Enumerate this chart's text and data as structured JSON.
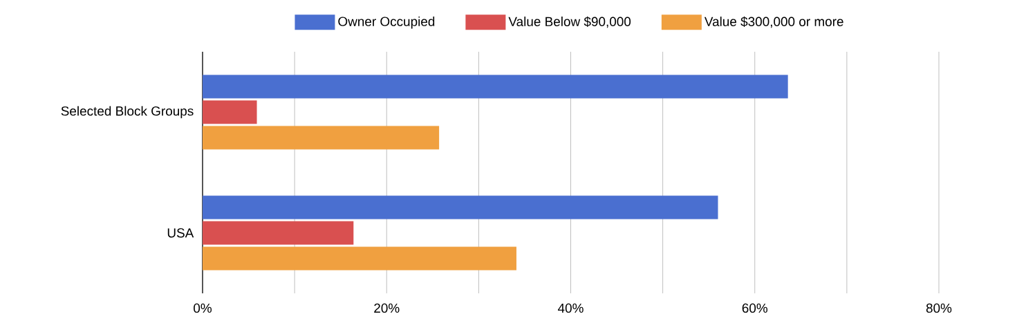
{
  "chart_data": {
    "type": "bar",
    "orientation": "horizontal",
    "categories": [
      "Selected Block Groups",
      "USA"
    ],
    "series": [
      {
        "name": "Owner Occupied",
        "color": "#4a6fd0",
        "values": [
          63.6,
          56.0
        ]
      },
      {
        "name": "Value Below $90,000",
        "color": "#d95050",
        "values": [
          5.9,
          16.4
        ]
      },
      {
        "name": "Value $300,000 or more",
        "color": "#f0a040",
        "values": [
          25.7,
          34.1
        ]
      }
    ],
    "xlim": [
      0,
      80
    ],
    "xticks": [
      {
        "value": 0,
        "label": "0%"
      },
      {
        "value": 10,
        "label": null
      },
      {
        "value": 20,
        "label": "20%"
      },
      {
        "value": 30,
        "label": null
      },
      {
        "value": 40,
        "label": "40%"
      },
      {
        "value": 50,
        "label": null
      },
      {
        "value": 60,
        "label": "60%"
      },
      {
        "value": 70,
        "label": null
      },
      {
        "value": 80,
        "label": "80%"
      }
    ],
    "grid": "x",
    "legend": "top"
  }
}
